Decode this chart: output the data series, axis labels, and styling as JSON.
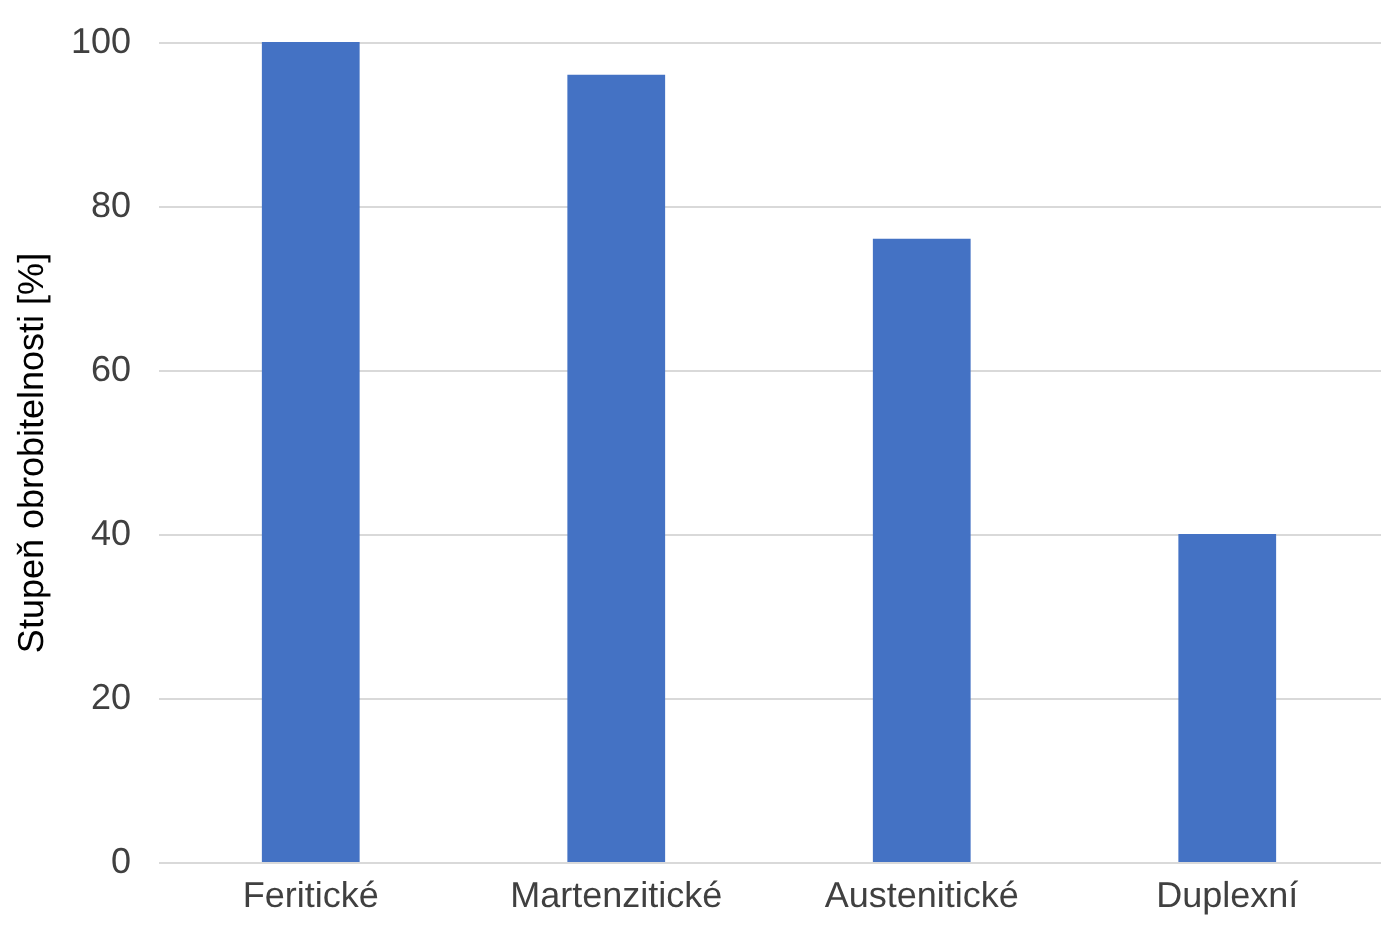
{
  "chart_data": {
    "type": "bar",
    "ylabel": "Stupeň obrobitelnosti [%]",
    "categories": [
      "Feritické",
      "Martenzitické",
      "Austenitické",
      "Duplexní"
    ],
    "values": [
      100,
      96,
      76,
      40
    ],
    "color": "#4472c4",
    "ylim": [
      0,
      100
    ],
    "yticks": [
      0,
      20,
      40,
      60,
      80,
      100
    ],
    "grid": "y"
  }
}
